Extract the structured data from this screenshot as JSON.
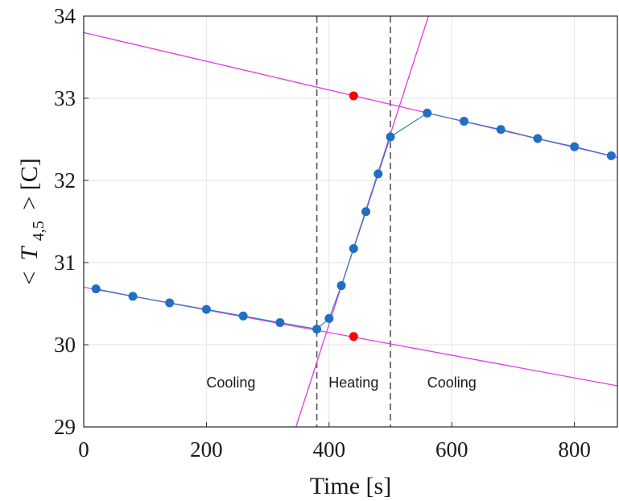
{
  "chart_data": {
    "type": "scatter",
    "xlabel": "Time [s]",
    "ylabel_parts": {
      "open": "<",
      "var": "T",
      "sub": "4,5",
      "close": "> [C]"
    },
    "xlim": [
      0,
      870
    ],
    "ylim": [
      29,
      34
    ],
    "xticks": [
      0,
      200,
      400,
      600,
      800
    ],
    "yticks": [
      29,
      30,
      31,
      32,
      33,
      34
    ],
    "grid": true,
    "colors": {
      "points": "#1f6fc4",
      "connect_line": "#1b7fb3",
      "fit_lines": "#e13ce3",
      "markers": "#ff0000",
      "dividers": "#555555",
      "grid": "#e3e3e3"
    },
    "series": [
      {
        "x": [
          20,
          80,
          140,
          200,
          260,
          320,
          380,
          400,
          420,
          440,
          460,
          480,
          500,
          560,
          620,
          680,
          740,
          800,
          860
        ],
        "y": [
          30.68,
          30.59,
          30.51,
          30.43,
          30.35,
          30.27,
          30.19,
          30.32,
          30.72,
          31.17,
          31.62,
          32.08,
          32.53,
          32.82,
          32.72,
          32.62,
          32.51,
          32.41,
          32.3
        ]
      }
    ],
    "fit_lines": [
      {
        "x": [
          0,
          870
        ],
        "y": [
          30.7,
          29.5
        ]
      },
      {
        "x": [
          346,
          562
        ],
        "y": [
          29.0,
          34.0
        ]
      },
      {
        "x": [
          0,
          870
        ],
        "y": [
          33.8,
          32.28
        ]
      }
    ],
    "markers": [
      {
        "x": 440,
        "y": 33.03
      },
      {
        "x": 440,
        "y": 30.1
      }
    ],
    "vlines": [
      380,
      500
    ],
    "regions": [
      {
        "label": "Cooling",
        "x": 240,
        "y": 29.48
      },
      {
        "label": "Heating",
        "x": 440,
        "y": 29.48
      },
      {
        "label": "Cooling",
        "x": 600,
        "y": 29.48
      }
    ]
  }
}
